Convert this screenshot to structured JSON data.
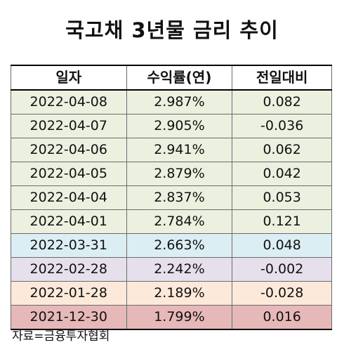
{
  "title": "국고채 3년물 금리 추이",
  "table": {
    "headers": [
      "일자",
      "수익률(연)",
      "전일대비"
    ],
    "rows": [
      {
        "date": "2022-04-08",
        "yield": "2.987%",
        "change": "0.082",
        "color": "#ebf1de"
      },
      {
        "date": "2022-04-07",
        "yield": "2.905%",
        "change": "-0.036",
        "color": "#ebf1de"
      },
      {
        "date": "2022-04-06",
        "yield": "2.941%",
        "change": "0.062",
        "color": "#ebf1de"
      },
      {
        "date": "2022-04-05",
        "yield": "2.879%",
        "change": "0.042",
        "color": "#ebf1de"
      },
      {
        "date": "2022-04-04",
        "yield": "2.837%",
        "change": "0.053",
        "color": "#ebf1de"
      },
      {
        "date": "2022-04-01",
        "yield": "2.784%",
        "change": "0.121",
        "color": "#ebf1de"
      },
      {
        "date": "2022-03-31",
        "yield": "2.663%",
        "change": "0.048",
        "color": "#dbeef4"
      },
      {
        "date": "2022-02-28",
        "yield": "2.242%",
        "change": "-0.002",
        "color": "#e6e0ec"
      },
      {
        "date": "2022-01-28",
        "yield": "2.189%",
        "change": "-0.028",
        "color": "#fde9d9"
      },
      {
        "date": "2021-12-30",
        "yield": "1.799%",
        "change": "0.016",
        "color": "#e6b9b8"
      }
    ]
  },
  "source": "자료=금융투자협회"
}
